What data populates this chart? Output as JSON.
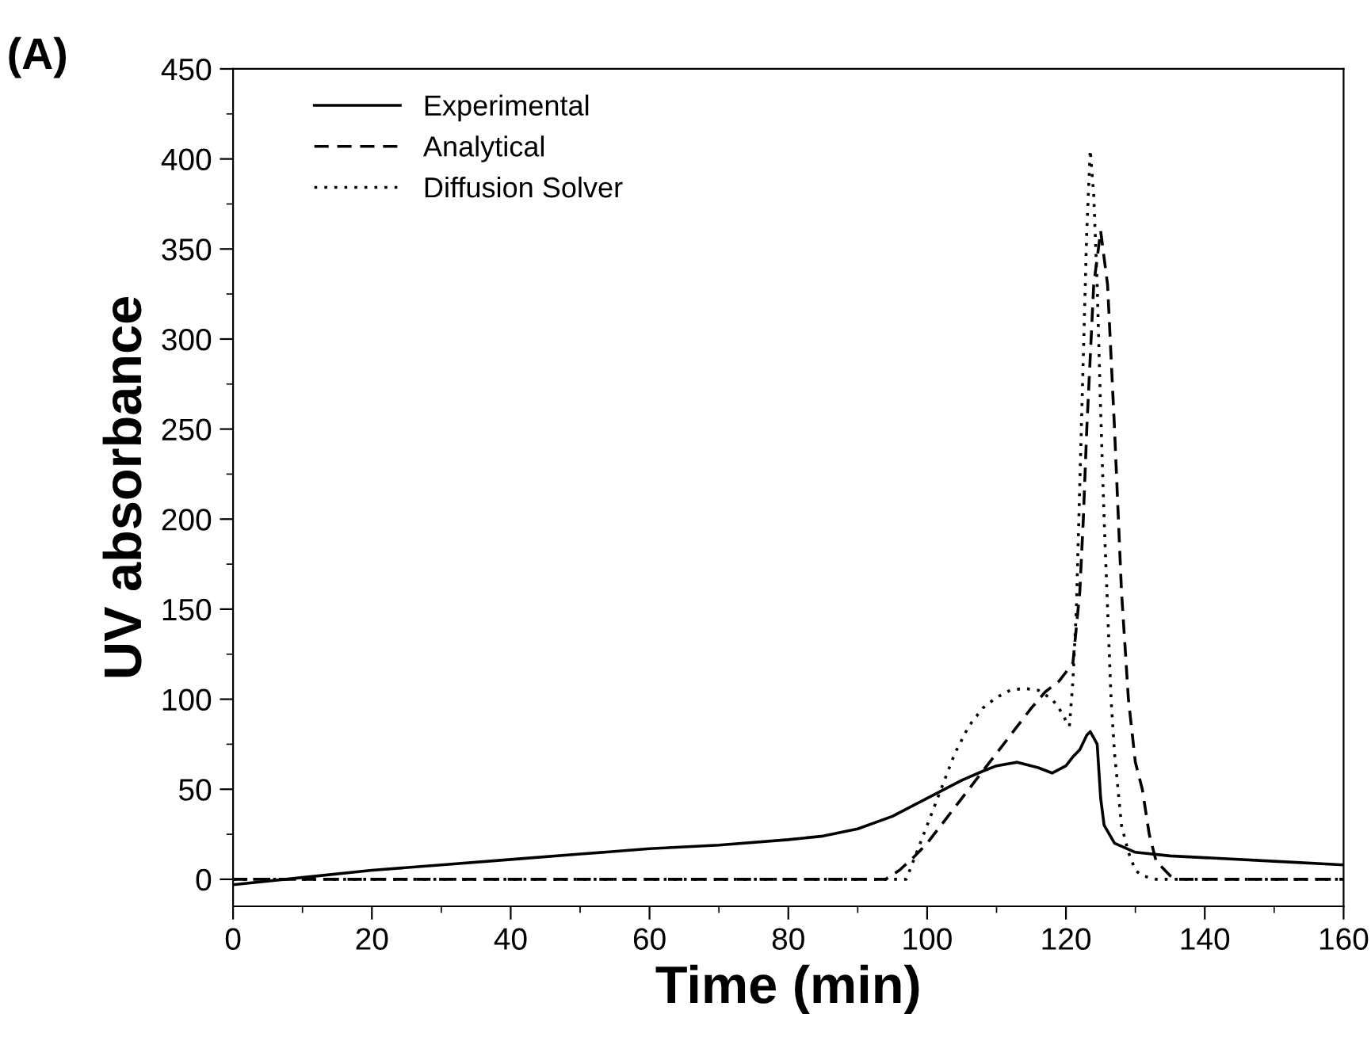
{
  "chart_data": {
    "type": "line",
    "title": "(A)",
    "xlabel": "Time (min)",
    "ylabel": "UV absorbance",
    "xlim": [
      0,
      160
    ],
    "xticks": [
      0,
      20,
      40,
      60,
      80,
      100,
      120,
      140,
      160
    ],
    "ylim": [
      -15,
      450
    ],
    "yticks": [
      0,
      50,
      100,
      150,
      200,
      250,
      300,
      350,
      400,
      450
    ],
    "legend": "top left",
    "grid": false,
    "series": [
      {
        "name": "Experimental",
        "color": "#000000",
        "line_style": "solid",
        "x": [
          0,
          10,
          20,
          30,
          40,
          50,
          60,
          70,
          80,
          85,
          90,
          95,
          100,
          105,
          108,
          110,
          113,
          116,
          118,
          120,
          121,
          122,
          123,
          123.5,
          124.5,
          125,
          125.5,
          127,
          130,
          135,
          140,
          150,
          160
        ],
        "values": [
          -3,
          1,
          5,
          8,
          11,
          14,
          17,
          19,
          22,
          24,
          28,
          35,
          45,
          55,
          60,
          63,
          65,
          62,
          59,
          63,
          68,
          72,
          80,
          82,
          75,
          45,
          30,
          20,
          15,
          13,
          12,
          10,
          8
        ]
      },
      {
        "name": "Analytical",
        "color": "#000000",
        "line_style": "dashed",
        "x": [
          0,
          94,
          96,
          98,
          100,
          103,
          105,
          108,
          110,
          113,
          115,
          117,
          119,
          121,
          122,
          122.5,
          123,
          123.5,
          124,
          125,
          126,
          127,
          128,
          129,
          130,
          131,
          132,
          133,
          135,
          136,
          160
        ],
        "values": [
          0,
          0,
          5,
          12,
          20,
          35,
          45,
          60,
          70,
          85,
          95,
          104,
          110,
          120,
          160,
          200,
          250,
          290,
          330,
          360,
          330,
          250,
          160,
          100,
          65,
          50,
          25,
          10,
          2,
          0,
          0
        ]
      },
      {
        "name": "Diffusion Solver",
        "color": "#000000",
        "line_style": "dotted",
        "x": [
          0,
          97,
          98,
          100,
          102,
          104,
          106,
          108,
          110,
          112,
          114,
          116,
          118,
          119,
          120,
          120.5,
          121,
          121.5,
          122,
          122.5,
          123,
          123.5,
          124,
          124.5,
          125,
          125.5,
          126,
          126.5,
          127,
          128,
          129,
          130,
          131,
          133,
          160
        ],
        "values": [
          0,
          0,
          10,
          30,
          50,
          70,
          85,
          95,
          101,
          105,
          106,
          105,
          100,
          95,
          88,
          85,
          110,
          150,
          220,
          290,
          360,
          405,
          380,
          330,
          260,
          200,
          150,
          100,
          70,
          30,
          15,
          5,
          2,
          0,
          0
        ]
      }
    ]
  }
}
